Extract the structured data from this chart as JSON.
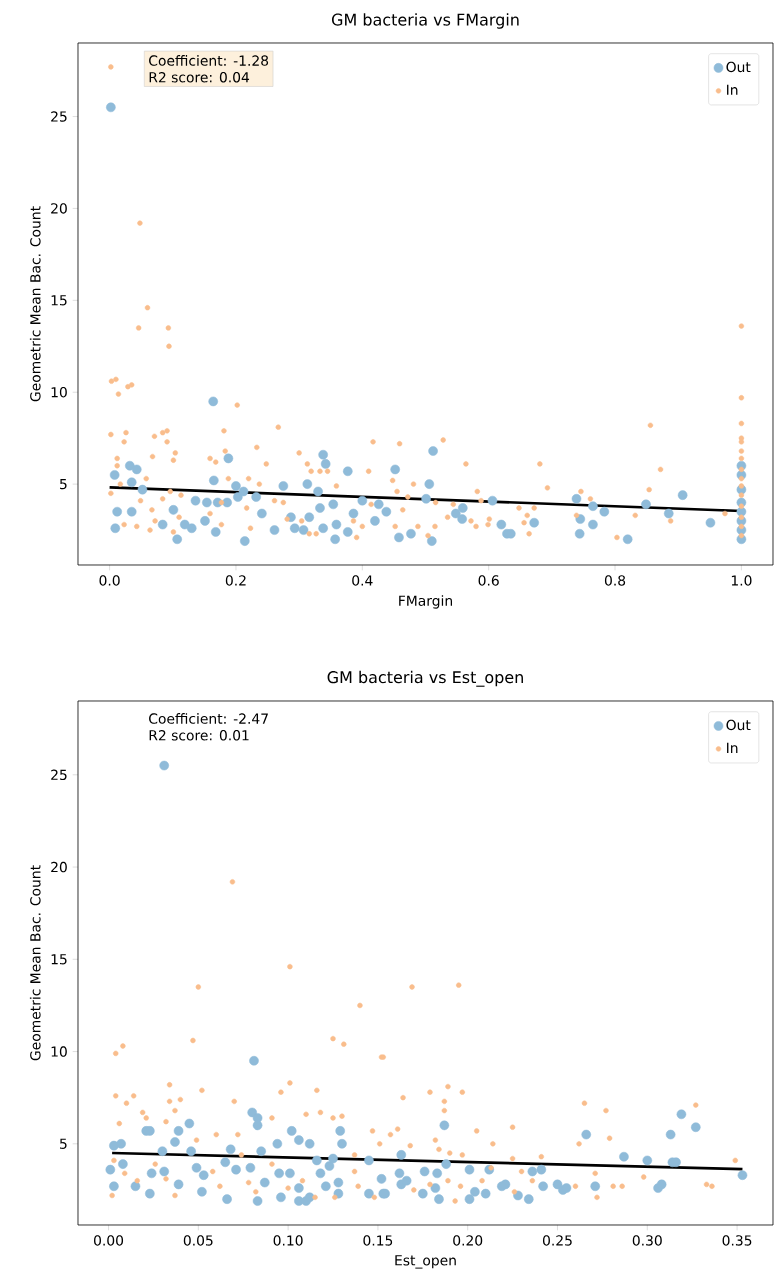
{
  "chart_data": [
    {
      "type": "scatter",
      "title": "GM bacteria vs FMargin",
      "xlabel": "FMargin",
      "ylabel": "Geometric Mean Bac. Count",
      "annotations": [
        "Coefficient: -1.28",
        "R2 score: 0.04"
      ],
      "xlim": [
        -0.05,
        1.05
      ],
      "ylim": [
        0.6,
        29.0
      ],
      "xticks": [
        {
          "value": 0,
          "label": "0.0"
        },
        {
          "value": 0.2,
          "label": "0.2"
        },
        {
          "value": 0.4,
          "label": "0.4"
        },
        {
          "value": 0.6,
          "label": "0.6"
        },
        {
          "value": 0.8,
          "label": "0.8"
        },
        {
          "value": 1,
          "label": "1.0"
        }
      ],
      "yticks": [
        5,
        10,
        15,
        20,
        25
      ],
      "legend": "top right",
      "marker": "circle",
      "series": [
        {
          "name": "Out",
          "color": "#8fbbd9",
          "x": [
            0.002,
            0.008,
            0.009,
            0.012,
            0.032,
            0.043,
            0.035,
            0.052,
            0.035,
            0.084,
            0.101,
            0.107,
            0.119,
            0.13,
            0.136,
            0.154,
            0.164,
            0.165,
            0.171,
            0.151,
            0.168,
            0.188,
            0.186,
            0.2,
            0.203,
            0.214,
            0.212,
            0.232,
            0.241,
            0.261,
            0.275,
            0.287,
            0.293,
            0.313,
            0.316,
            0.307,
            0.33,
            0.333,
            0.338,
            0.342,
            0.338,
            0.354,
            0.357,
            0.359,
            0.377,
            0.377,
            0.386,
            0.4,
            0.42,
            0.426,
            0.438,
            0.452,
            0.458,
            0.477,
            0.501,
            0.506,
            0.512,
            0.51,
            0.548,
            0.559,
            0.558,
            0.606,
            0.62,
            0.629,
            0.635,
            0.672,
            0.739,
            0.745,
            0.744,
            0.765,
            0.765,
            0.783,
            0.82,
            0.849,
            0.885,
            0.907,
            0.951,
            1,
            1,
            1,
            1,
            1,
            1,
            1,
            1
          ],
          "values": [
            25.5,
            5.5,
            2.6,
            3.5,
            6.0,
            5.8,
            5.1,
            4.7,
            3.5,
            2.8,
            3.6,
            2.0,
            2.8,
            2.6,
            4.1,
            4.0,
            9.5,
            5.2,
            4.0,
            3.0,
            2.4,
            6.4,
            4.0,
            4.9,
            4.3,
            1.9,
            4.6,
            4.3,
            3.4,
            2.5,
            4.9,
            3.2,
            2.6,
            5.0,
            3.2,
            2.5,
            4.6,
            3.7,
            6.6,
            6.1,
            2.6,
            3.9,
            2.0,
            2.8,
            5.7,
            2.4,
            3.4,
            4.1,
            3.0,
            3.9,
            3.5,
            5.8,
            2.1,
            2.3,
            4.2,
            5.0,
            6.8,
            1.9,
            3.4,
            3.7,
            3.1,
            4.1,
            2.8,
            2.3,
            2.3,
            2.9,
            4.2,
            3.1,
            2.3,
            3.8,
            2.8,
            3.5,
            2.0,
            3.9,
            3.4,
            4.4,
            2.9,
            6.0,
            5.5,
            4.7,
            4.0,
            3.5,
            3.0,
            2.5,
            2.0
          ]
        },
        {
          "name": "In",
          "color": "#f9bd8c",
          "x": [
            0.002,
            0.048,
            0.06,
            0.046,
            0.093,
            0.094,
            0.003,
            0.01,
            0.014,
            0.029,
            0.035,
            0.002,
            0.026,
            0.023,
            0.071,
            0.084,
            0.091,
            0.091,
            0.104,
            0.101,
            0.068,
            0.012,
            0.012,
            0.002,
            0.017,
            0.049,
            0.058,
            0.067,
            0.072,
            0.064,
            0.043,
            0.023,
            0.084,
            0.096,
            0.113,
            0.11,
            0.101,
            0.159,
            0.168,
            0.181,
            0.183,
            0.177,
            0.159,
            0.177,
            0.202,
            0.188,
            0.22,
            0.217,
            0.223,
            0.233,
            0.237,
            0.248,
            0.267,
            0.261,
            0.275,
            0.281,
            0.3,
            0.313,
            0.319,
            0.304,
            0.316,
            0.327,
            0.345,
            0.359,
            0.333,
            0.386,
            0.391,
            0.41,
            0.417,
            0.414,
            0.4,
            0.448,
            0.455,
            0.459,
            0.464,
            0.472,
            0.481,
            0.488,
            0.452,
            0.504,
            0.516,
            0.515,
            0.528,
            0.535,
            0.544,
            0.564,
            0.572,
            0.58,
            0.582,
            0.588,
            0.599,
            0.601,
            0.648,
            0.656,
            0.661,
            0.664,
            0.672,
            0.681,
            0.693,
            0.739,
            0.746,
            0.761,
            0.803,
            0.832,
            0.854,
            0.856,
            0.872,
            0.888,
            0.974,
            1,
            1,
            1,
            1,
            1,
            1,
            1,
            1,
            1,
            1,
            1,
            1,
            1,
            1,
            1
          ],
          "values": [
            27.7,
            19.2,
            14.6,
            13.5,
            13.5,
            12.5,
            10.6,
            10.7,
            9.9,
            10.3,
            10.4,
            7.7,
            7.8,
            7.3,
            7.6,
            7.8,
            7.9,
            7.3,
            6.7,
            6.3,
            6.5,
            6.4,
            6.0,
            4.5,
            5.0,
            4.1,
            5.3,
            3.6,
            3.0,
            2.5,
            2.7,
            2.8,
            4.2,
            4.6,
            4.4,
            3.2,
            2.4,
            6.4,
            6.2,
            7.9,
            6.8,
            4.0,
            3.4,
            2.8,
            9.3,
            5.3,
            5.3,
            3.7,
            2.6,
            7.0,
            5.0,
            6.1,
            8.1,
            4.1,
            4.0,
            3.1,
            6.7,
            6.1,
            5.7,
            3.0,
            2.3,
            2.3,
            5.7,
            4.9,
            5.7,
            3.0,
            2.1,
            5.7,
            7.3,
            3.9,
            2.7,
            5.2,
            4.6,
            7.2,
            3.6,
            4.3,
            5.0,
            2.7,
            2.7,
            2.2,
            4.0,
            2.7,
            7.4,
            3.2,
            3.9,
            6.1,
            3.0,
            2.7,
            4.6,
            4.1,
            2.8,
            3.1,
            3.7,
            2.9,
            3.3,
            2.3,
            3.7,
            6.1,
            4.8,
            3.3,
            4.6,
            4.2,
            2.1,
            3.3,
            4.7,
            8.2,
            5.8,
            3.0,
            3.4,
            13.6,
            9.7,
            8.3,
            7.5,
            7.3,
            6.8,
            6.4,
            5.8,
            5.3,
            4.9,
            4.4,
            3.8,
            3.2,
            2.7,
            2.2
          ]
        },
        {
          "type": "line",
          "color": "#000000",
          "marker": "none",
          "x": [
            0,
            1
          ],
          "values": [
            4.82,
            3.54
          ]
        }
      ]
    },
    {
      "type": "scatter",
      "title": "GM bacteria vs Est_open",
      "xlabel": "Est_open",
      "ylabel": "Geometric Mean Bac. Count",
      "annotations": [
        "Coefficient: -2.47",
        "R2 score: 0.01"
      ],
      "xlim": [
        -0.017,
        0.37
      ],
      "ylim": [
        0.6,
        29.0
      ],
      "xticks": [
        {
          "value": 0,
          "label": "0.00"
        },
        {
          "value": 0.05,
          "label": "0.05"
        },
        {
          "value": 0.1,
          "label": "0.10"
        },
        {
          "value": 0.15,
          "label": "0.15"
        },
        {
          "value": 0.2,
          "label": "0.20"
        },
        {
          "value": 0.25,
          "label": "0.25"
        },
        {
          "value": 0.3,
          "label": "0.30"
        },
        {
          "value": 0.35,
          "label": "0.35"
        }
      ],
      "yticks": [
        5,
        10,
        15,
        20,
        25
      ],
      "legend": "top right",
      "marker": "circle",
      "series": [
        {
          "name": "Out",
          "color": "#8fbbd9",
          "x": [
            0.031,
            0.081,
            0.08,
            0.083,
            0.083,
            0.045,
            0.039,
            0.037,
            0.021,
            0.023,
            0.003,
            0.007,
            0.003,
            0.001,
            0.008,
            0.015,
            0.023,
            0.024,
            0.03,
            0.031,
            0.039,
            0.046,
            0.049,
            0.052,
            0.053,
            0.065,
            0.066,
            0.068,
            0.071,
            0.079,
            0.083,
            0.087,
            0.085,
            0.094,
            0.095,
            0.096,
            0.101,
            0.102,
            0.106,
            0.106,
            0.106,
            0.11,
            0.112,
            0.112,
            0.116,
            0.118,
            0.121,
            0.123,
            0.125,
            0.128,
            0.128,
            0.129,
            0.13,
            0.145,
            0.145,
            0.152,
            0.153,
            0.154,
            0.163,
            0.162,
            0.163,
            0.166,
            0.175,
            0.176,
            0.182,
            0.183,
            0.184,
            0.187,
            0.188,
            0.201,
            0.201,
            0.204,
            0.21,
            0.212,
            0.219,
            0.221,
            0.228,
            0.234,
            0.236,
            0.241,
            0.242,
            0.25,
            0.253,
            0.255,
            0.266,
            0.271,
            0.287,
            0.3,
            0.306,
            0.308,
            0.313,
            0.314,
            0.316,
            0.319,
            0.327,
            0.353
          ],
          "values": [
            25.5,
            9.5,
            6.7,
            6.4,
            6.0,
            6.1,
            5.7,
            5.1,
            5.7,
            5.7,
            4.9,
            5.0,
            2.7,
            3.6,
            3.9,
            2.7,
            2.3,
            3.4,
            4.6,
            3.5,
            2.8,
            4.6,
            3.7,
            2.4,
            3.3,
            4.0,
            2.0,
            4.7,
            3.6,
            3.7,
            1.9,
            2.9,
            4.6,
            5.0,
            3.4,
            2.1,
            3.4,
            5.7,
            5.2,
            2.6,
            1.9,
            1.9,
            2.1,
            5.0,
            4.1,
            3.4,
            2.7,
            3.8,
            4.2,
            2.3,
            2.9,
            5.7,
            5.0,
            4.1,
            2.3,
            3.1,
            2.3,
            2.3,
            4.4,
            3.4,
            2.8,
            3.0,
            2.3,
            3.5,
            2.6,
            3.4,
            2.0,
            6.0,
            3.9,
            3.6,
            2.0,
            2.4,
            2.3,
            3.6,
            2.7,
            2.8,
            2.2,
            2.0,
            3.5,
            3.6,
            2.7,
            2.8,
            2.5,
            2.6,
            5.5,
            2.7,
            4.3,
            4.1,
            2.6,
            2.8,
            5.5,
            4.0,
            4.0,
            6.6,
            5.9,
            3.3
          ]
        },
        {
          "name": "In",
          "color": "#f9bd8c",
          "x": [
            0.069,
            0.101,
            0.05,
            0.14,
            0.047,
            0.125,
            0.131,
            0.004,
            0.008,
            0.152,
            0.034,
            0.052,
            0.101,
            0.116,
            0.004,
            0.01,
            0.014,
            0.034,
            0.04,
            0.07,
            0.096,
            0.019,
            0.021,
            0.032,
            0.037,
            0.006,
            0.06,
            0.072,
            0.091,
            0.11,
            0.118,
            0.125,
            0.13,
            0.147,
            0.002,
            0.003,
            0.009,
            0.016,
            0.026,
            0.032,
            0.037,
            0.049,
            0.058,
            0.062,
            0.074,
            0.078,
            0.082,
            0.091,
            0.1,
            0.108,
            0.115,
            0.126,
            0.137,
            0.139,
            0.148,
            0.151,
            0.137,
            0.153,
            0.169,
            0.195,
            0.164,
            0.179,
            0.189,
            0.197,
            0.187,
            0.187,
            0.161,
            0.157,
            0.168,
            0.182,
            0.184,
            0.19,
            0.197,
            0.205,
            0.214,
            0.225,
            0.225,
            0.241,
            0.213,
            0.208,
            0.196,
            0.193,
            0.189,
            0.179,
            0.17,
            0.23,
            0.236,
            0.226,
            0.265,
            0.262,
            0.277,
            0.279,
            0.271,
            0.272,
            0.26,
            0.281,
            0.286,
            0.298,
            0.327,
            0.333,
            0.336,
            0.349
          ],
          "values": [
            19.2,
            14.6,
            13.5,
            12.5,
            10.6,
            10.7,
            10.4,
            9.9,
            10.3,
            9.7,
            8.2,
            7.9,
            8.3,
            7.9,
            7.6,
            7.2,
            7.6,
            7.3,
            7.4,
            7.3,
            7.8,
            6.7,
            6.4,
            6.2,
            6.8,
            6.1,
            5.5,
            5.5,
            6.4,
            6.6,
            6.7,
            6.4,
            6.5,
            5.7,
            2.2,
            4.1,
            3.4,
            3.0,
            3.9,
            3.1,
            2.2,
            5.2,
            3.5,
            2.7,
            4.4,
            2.9,
            2.4,
            3.9,
            2.6,
            3.0,
            2.1,
            2.1,
            4.4,
            2.7,
            2.1,
            5.0,
            3.5,
            9.7,
            13.5,
            13.6,
            7.5,
            7.8,
            8.1,
            7.8,
            7.3,
            6.8,
            5.8,
            5.5,
            4.9,
            5.2,
            4.7,
            4.5,
            4.4,
            5.7,
            5.0,
            5.9,
            4.2,
            4.3,
            3.7,
            3.0,
            2.7,
            1.9,
            3.0,
            2.8,
            2.5,
            3.5,
            3.0,
            2.4,
            7.2,
            5.0,
            6.8,
            5.3,
            3.4,
            2.1,
            2.7,
            2.7,
            2.7,
            3.2,
            7.1,
            2.8,
            2.7,
            4.1
          ]
        },
        {
          "type": "line",
          "color": "#000000",
          "marker": "none",
          "x": [
            0.002,
            0.353
          ],
          "values": [
            4.5,
            3.63
          ]
        }
      ]
    }
  ]
}
